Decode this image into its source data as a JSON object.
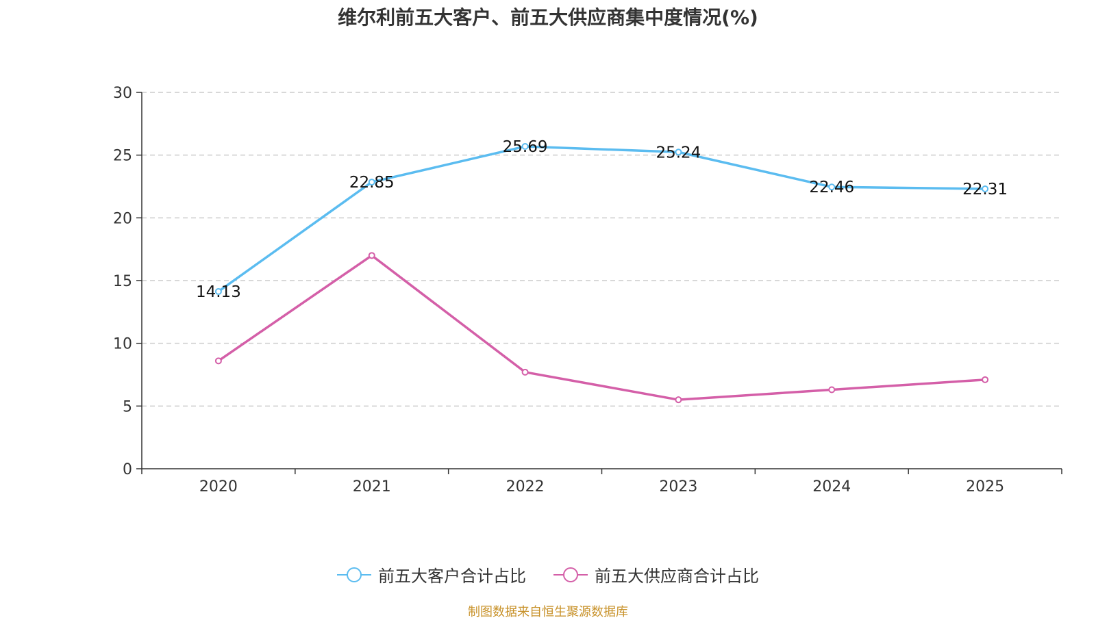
{
  "chart_data": {
    "type": "line",
    "title": "维尔利前五大客户、前五大供应商集中度情况(%)",
    "categories": [
      "2020",
      "2021",
      "2022",
      "2023",
      "2024",
      "2025"
    ],
    "ylim": [
      0,
      30
    ],
    "yticks": [
      0,
      5,
      10,
      15,
      20,
      25,
      30
    ],
    "xlabel": "",
    "ylabel": "",
    "grid": true,
    "legend_position": "bottom",
    "series": [
      {
        "name": "前五大客户合计占比",
        "color": "#5bbcf0",
        "values": [
          14.13,
          22.85,
          25.69,
          25.24,
          22.46,
          22.31
        ],
        "labels": [
          "14.13",
          "22.85",
          "25.69",
          "25.24",
          "22.46",
          "22.31"
        ],
        "show_labels": true
      },
      {
        "name": "前五大供应商合计占比",
        "color": "#d45fa8",
        "values": [
          8.6,
          17.0,
          7.7,
          5.5,
          6.3,
          7.1
        ],
        "show_labels": false
      }
    ]
  },
  "source_text": "制图数据来自恒生聚源数据库",
  "source_color": "#c8922a"
}
